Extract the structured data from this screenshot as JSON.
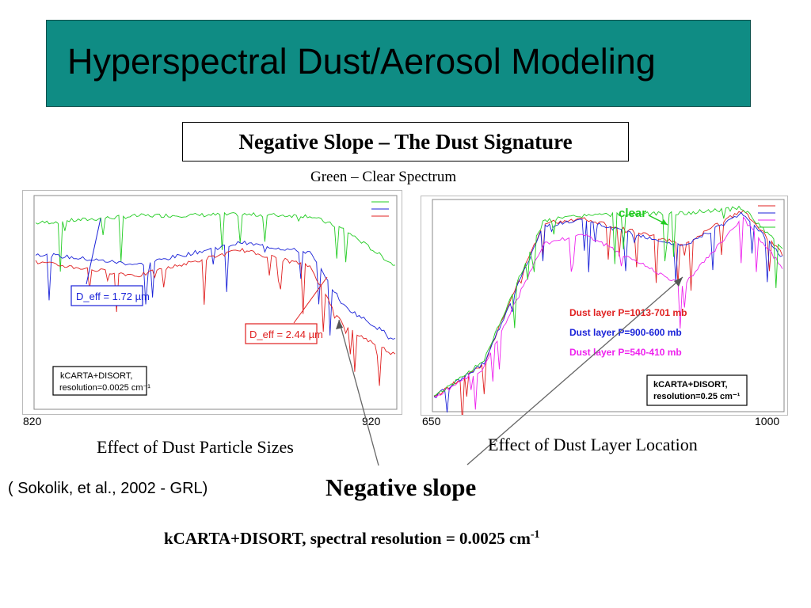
{
  "title": "Hyperspectral Dust/Aerosol Modeling",
  "subtitle": "Negative Slope – The Dust Signature",
  "green_note": "Green – Clear Spectrum",
  "colors": {
    "header_bg": "#0f8c84",
    "clear": "#22cc22",
    "red": "#e02020",
    "blue": "#1a22d8",
    "magenta": "#ee22ee"
  },
  "chart_data": [
    {
      "type": "line",
      "x_tick_labels": [
        "820",
        "920"
      ],
      "annotations": [
        "D_eff = 1.72 µm",
        "D_eff = 2.44 µm",
        "kCARTA+DISORT,",
        "resolution=0.0025 cm⁻¹"
      ],
      "series": [
        {
          "color": "#22cc22",
          "x": [
            820,
            850,
            880,
            900,
            910,
            925
          ],
          "y": [
            290,
            290.6,
            290.7,
            290.6,
            289.5,
            286.5
          ]
        },
        {
          "color": "#1a22d8",
          "x": [
            820,
            850,
            880,
            900,
            910,
            925
          ],
          "y": [
            287.5,
            286.6,
            288.4,
            287.6,
            283.2,
            280.5
          ]
        },
        {
          "color": "#e02020",
          "x": [
            820,
            850,
            880,
            900,
            910,
            925
          ],
          "y": [
            286.8,
            285.7,
            287.8,
            286.5,
            281.5,
            279.2
          ]
        }
      ]
    },
    {
      "type": "line",
      "x_tick_labels": [
        "650",
        "1000"
      ],
      "annotations": [
        "clear",
        "Dust layer P=1013-701 mb",
        "Dust layer P=900-600 mb",
        "Dust layer P=540-410 mb",
        "kCARTA+DISORT,",
        "resolution=0.25 cm⁻¹"
      ],
      "series": [
        {
          "name": "Dust layer P=1013-701 mb",
          "color": "#e02020",
          "x": [
            650,
            700,
            760,
            800,
            900,
            960,
            1000
          ],
          "y": [
            225,
            238,
            292,
            294,
            284,
            297,
            280
          ]
        },
        {
          "name": "Dust layer P=900-600 mb",
          "color": "#1a22d8",
          "x": [
            650,
            700,
            760,
            800,
            900,
            960,
            1000
          ],
          "y": [
            225,
            238,
            291,
            293,
            283,
            296,
            279
          ]
        },
        {
          "name": "Dust layer P=540-410 mb",
          "color": "#ee22ee",
          "x": [
            650,
            700,
            760,
            800,
            900,
            960,
            1000
          ],
          "y": [
            225,
            236,
            284,
            288,
            268,
            294,
            275
          ]
        },
        {
          "color": "#22cc22",
          "x": [
            650,
            700,
            760,
            800,
            900,
            960,
            1000
          ],
          "y": [
            225,
            239,
            293,
            295,
            296,
            298,
            282
          ]
        }
      ]
    }
  ],
  "captions": {
    "left": "Effect of Dust Particle Sizes",
    "right": "Effect of Dust Layer Location"
  },
  "citation": "( Sokolik, et al., 2002 - GRL)",
  "negative_slope": "Negative slope",
  "bottom_note": "kCARTA+DISORT, spectral resolution = 0.0025 cm",
  "bottom_note_sup": "-1"
}
